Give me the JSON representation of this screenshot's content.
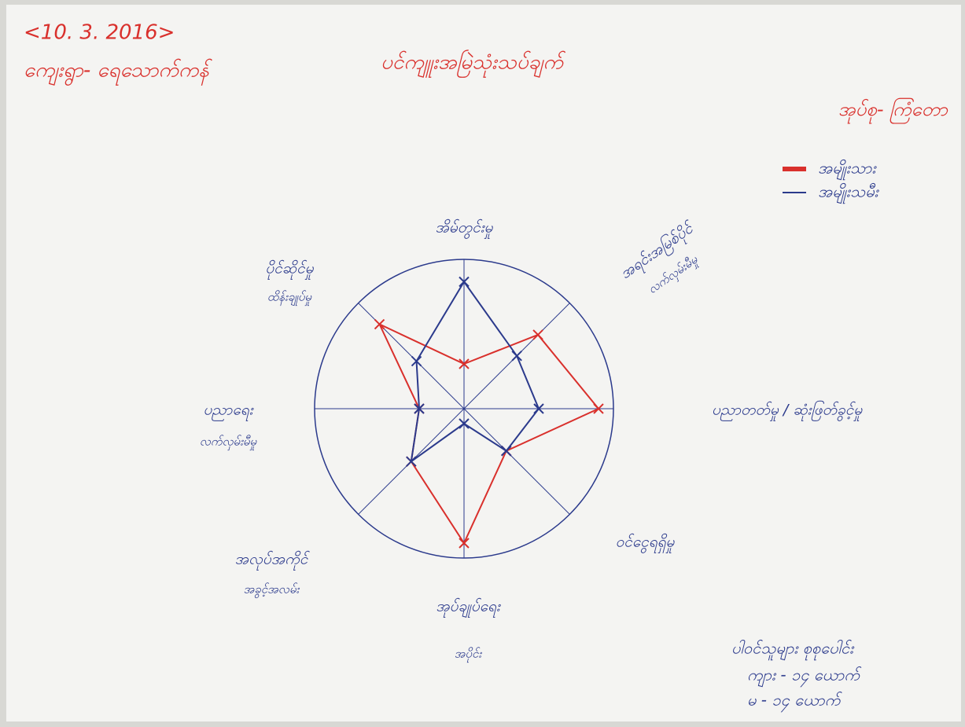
{
  "chart_data": {
    "type": "radar",
    "title": "ပင်ကျူးအမြဲသုံးသပ်ချက်",
    "date": "<10. 3. 2016>",
    "village": "ကျေးရွာ- ရေသောက်ကန်",
    "group": "အုပ်စု- ကြံတော",
    "participants": [
      "ပါဝင်သူများ စုစုပေါင်း",
      "ကျား - ၁၄ ယောက်",
      "မ - ၁၄ ယောက်"
    ],
    "categories": [
      [
        "အိမ်တွင်းမှု"
      ],
      [
        "အရင်းအမြစ်ပိုင်",
        "လက်လှမ်းမီမှု"
      ],
      [
        "ပညာတတ်မှု / ဆုံးဖြတ်ခွင့်မှု"
      ],
      [
        "ဝင်ငွေရရှိမှု"
      ],
      [
        "အုပ်ချုပ်ရေး",
        "အပိုင်း"
      ],
      [
        "အလုပ်အကိုင်",
        "အခွင့်အလမ်း"
      ],
      [
        "ပညာရေး",
        "လက်လှမ်းမီမှု"
      ],
      [
        "ပိုင်ဆိုင်မှု",
        "ထိန်းချုပ်မှု"
      ]
    ],
    "series": [
      {
        "name": "အမျိုးသား",
        "color": "#d9302c",
        "values": [
          3,
          7,
          9,
          4,
          9,
          5,
          3,
          8
        ]
      },
      {
        "name": "အမျိုးသမီး",
        "color": "#2b3a8c",
        "values": [
          8.5,
          5,
          5,
          4,
          1,
          5,
          3,
          4.5
        ]
      }
    ],
    "rlim": [
      0,
      10
    ]
  }
}
